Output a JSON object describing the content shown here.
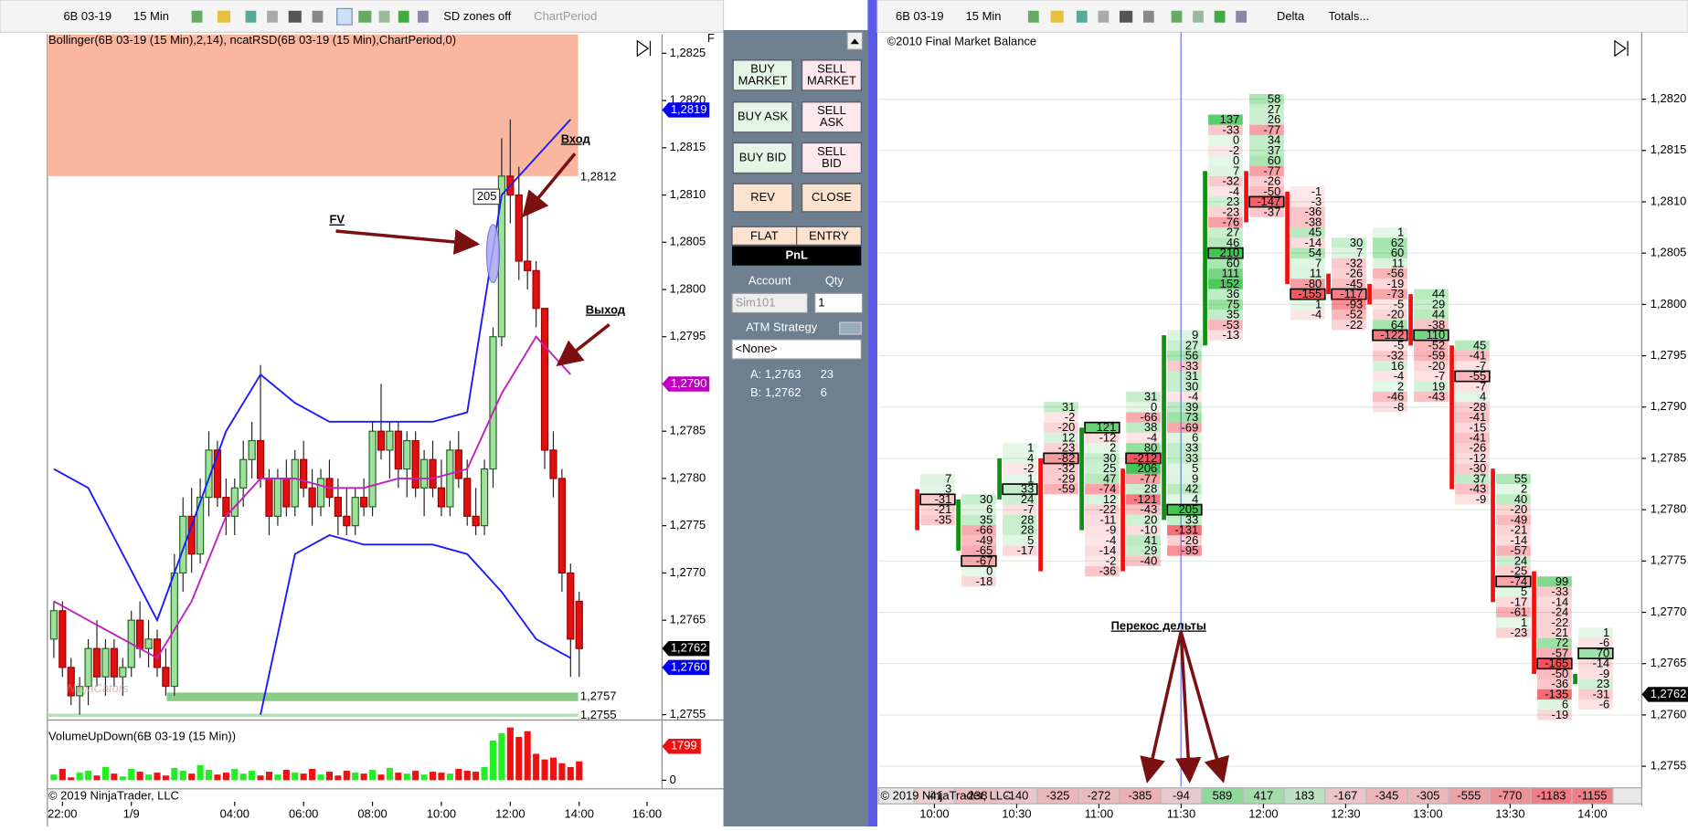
{
  "left_toolbar": {
    "instrument": "6B 03-19",
    "period": "15 Min",
    "sd_zones": "SD zones off",
    "chart_period": "ChartPeriod"
  },
  "left_chart": {
    "indicator_label": "Bollinger(6B 03-19 (15 Min),2,14),  ncatRSD(6B 03-19 (15 Min),ChartPeriod,0)",
    "ylim": [
      1.2755,
      1.2827
    ],
    "yticks": [
      {
        "value": 1.2825,
        "label": "1,2825"
      },
      {
        "value": 1.282,
        "label": "1,2820"
      },
      {
        "value": 1.2815,
        "label": "1,2815"
      },
      {
        "value": 1.281,
        "label": "1,2810"
      },
      {
        "value": 1.2805,
        "label": "1,2805"
      },
      {
        "value": 1.28,
        "label": "1,2800"
      },
      {
        "value": 1.2795,
        "label": "1,2795"
      },
      {
        "value": 1.279,
        "label": "1,2790"
      },
      {
        "value": 1.2785,
        "label": "1,2785"
      },
      {
        "value": 1.278,
        "label": "1,2780"
      },
      {
        "value": 1.2775,
        "label": "1,2775"
      },
      {
        "value": 1.277,
        "label": "1,2770"
      },
      {
        "value": 1.2765,
        "label": "1,2765"
      },
      {
        "value": 1.276,
        "label": "1,2760"
      },
      {
        "value": 1.2755,
        "label": "1,2755"
      }
    ],
    "x_labels": [
      "22:00",
      "1/9",
      "04:00",
      "06:00",
      "08:00",
      "10:00",
      "12:00",
      "14:00",
      "16:00"
    ],
    "candles": [
      [
        1.2763,
        1.2767,
        1.2761,
        1.2766
      ],
      [
        1.2766,
        1.2767,
        1.2759,
        1.276
      ],
      [
        1.276,
        1.2761,
        1.2756,
        1.2757
      ],
      [
        1.2757,
        1.2759,
        1.2755,
        1.2758
      ],
      [
        1.2758,
        1.2763,
        1.2756,
        1.2762
      ],
      [
        1.2762,
        1.2765,
        1.2758,
        1.2759
      ],
      [
        1.2759,
        1.2763,
        1.2757,
        1.2762
      ],
      [
        1.2762,
        1.2763,
        1.2758,
        1.2759
      ],
      [
        1.2759,
        1.2761,
        1.2757,
        1.276
      ],
      [
        1.276,
        1.2766,
        1.2759,
        1.2765
      ],
      [
        1.2765,
        1.2767,
        1.2761,
        1.2762
      ],
      [
        1.2762,
        1.2765,
        1.276,
        1.2763
      ],
      [
        1.2763,
        1.2764,
        1.2759,
        1.276
      ],
      [
        1.276,
        1.2762,
        1.2757,
        1.2758
      ],
      [
        1.2758,
        1.2772,
        1.2757,
        1.277
      ],
      [
        1.277,
        1.2778,
        1.2768,
        1.2776
      ],
      [
        1.2776,
        1.2779,
        1.277,
        1.2772
      ],
      [
        1.2772,
        1.278,
        1.2771,
        1.2778
      ],
      [
        1.2778,
        1.2785,
        1.2776,
        1.2783
      ],
      [
        1.2783,
        1.2784,
        1.2777,
        1.2778
      ],
      [
        1.2778,
        1.278,
        1.2774,
        1.2776
      ],
      [
        1.2776,
        1.278,
        1.2774,
        1.2779
      ],
      [
        1.2779,
        1.2784,
        1.2777,
        1.2782
      ],
      [
        1.2782,
        1.2786,
        1.278,
        1.2784
      ],
      [
        1.2784,
        1.2792,
        1.2779,
        1.278
      ],
      [
        1.278,
        1.2781,
        1.2774,
        1.2776
      ],
      [
        1.2776,
        1.2781,
        1.2775,
        1.278
      ],
      [
        1.278,
        1.2782,
        1.2776,
        1.2777
      ],
      [
        1.2777,
        1.2783,
        1.2776,
        1.2782
      ],
      [
        1.2782,
        1.2784,
        1.2778,
        1.2779
      ],
      [
        1.2779,
        1.2781,
        1.2775,
        1.2777
      ],
      [
        1.2777,
        1.2781,
        1.2776,
        1.278
      ],
      [
        1.278,
        1.2782,
        1.2777,
        1.2778
      ],
      [
        1.2778,
        1.278,
        1.2774,
        1.2776
      ],
      [
        1.2776,
        1.2779,
        1.2774,
        1.2775
      ],
      [
        1.2775,
        1.2779,
        1.2774,
        1.2778
      ],
      [
        1.2778,
        1.278,
        1.2776,
        1.2777
      ],
      [
        1.2777,
        1.2786,
        1.2776,
        1.2785
      ],
      [
        1.2785,
        1.279,
        1.2782,
        1.2783
      ],
      [
        1.2783,
        1.2786,
        1.278,
        1.2785
      ],
      [
        1.2785,
        1.2786,
        1.2779,
        1.2781
      ],
      [
        1.2781,
        1.2785,
        1.2778,
        1.2784
      ],
      [
        1.2784,
        1.2785,
        1.2778,
        1.2779
      ],
      [
        1.2779,
        1.2783,
        1.2776,
        1.2782
      ],
      [
        1.2782,
        1.2784,
        1.2778,
        1.2779
      ],
      [
        1.2779,
        1.2782,
        1.2776,
        1.2777
      ],
      [
        1.2777,
        1.2784,
        1.2776,
        1.2783
      ],
      [
        1.2783,
        1.2785,
        1.2779,
        1.278
      ],
      [
        1.278,
        1.2782,
        1.2775,
        1.2776
      ],
      [
        1.2776,
        1.2779,
        1.2774,
        1.2775
      ],
      [
        1.2775,
        1.2782,
        1.2774,
        1.2781
      ],
      [
        1.2781,
        1.2796,
        1.2779,
        1.2795
      ],
      [
        1.2795,
        1.2816,
        1.2794,
        1.2812
      ],
      [
        1.2812,
        1.2818,
        1.2807,
        1.281
      ],
      [
        1.281,
        1.2813,
        1.2801,
        1.2803
      ],
      [
        1.2803,
        1.2808,
        1.28,
        1.2802
      ],
      [
        1.2802,
        1.2803,
        1.2796,
        1.2798
      ],
      [
        1.2798,
        1.2798,
        1.2781,
        1.2783
      ],
      [
        1.2783,
        1.2785,
        1.2778,
        1.278
      ],
      [
        1.278,
        1.2781,
        1.2768,
        1.277
      ],
      [
        1.277,
        1.2771,
        1.2759,
        1.2763
      ],
      [
        1.2767,
        1.2768,
        1.2759,
        1.2762
      ]
    ],
    "bands": {
      "x": [
        0,
        4,
        8,
        12,
        16,
        20,
        24,
        28,
        32,
        36,
        40,
        44,
        48,
        52,
        56,
        60
      ],
      "series": [
        {
          "color": "#1a1aff",
          "values": [
            1.2781,
            1.2779,
            1.2772,
            1.2765,
            1.2775,
            1.2785,
            1.2791,
            1.2788,
            1.2786,
            1.2786,
            1.2786,
            1.2786,
            1.2787,
            1.281,
            1.2814,
            1.2818
          ]
        },
        {
          "color": "#c020c0",
          "values": [
            1.2767,
            1.2765,
            1.2763,
            1.2761,
            1.2767,
            1.2776,
            1.278,
            1.278,
            1.2779,
            1.2779,
            1.278,
            1.278,
            1.2781,
            1.2789,
            1.2795,
            1.2791
          ]
        },
        {
          "color": "#1a1aff",
          "values": [
            null,
            null,
            null,
            null,
            null,
            null,
            1.2755,
            1.2772,
            1.2774,
            1.2773,
            1.2773,
            1.2773,
            1.2772,
            1.2768,
            1.2763,
            1.2761
          ]
        }
      ]
    },
    "zones": [
      {
        "value": 1.2812,
        "label": "1,2812",
        "color": "#f9b7a0"
      },
      {
        "value": 1.2757,
        "label": "1,2757",
        "color": "#88cc88"
      },
      {
        "value": 1.2755,
        "label": "1,2755",
        "color": "#b5e0b5"
      }
    ],
    "flags": [
      {
        "value": 1.2819,
        "label": "1,2819",
        "color": "#0000ee"
      },
      {
        "value": 1.279,
        "label": "1,2790",
        "color": "#c000c0"
      },
      {
        "value": 1.2762,
        "label": "1,2762",
        "color": "#000000"
      },
      {
        "value": 1.276,
        "label": "1,2760",
        "color": "#0000ee"
      }
    ],
    "marker_label": "205",
    "watermark": "NinjaCators",
    "volume": {
      "label": "VolumeUpDown(6B 03-19 (15 Min))",
      "ylim": [
        0,
        2850
      ],
      "yticks": [
        0
      ],
      "flag": 1799,
      "values": [
        300,
        600,
        150,
        400,
        500,
        250,
        700,
        350,
        200,
        600,
        450,
        300,
        400,
        250,
        650,
        500,
        350,
        800,
        550,
        300,
        400,
        600,
        350,
        500,
        250,
        450,
        300,
        550,
        400,
        350,
        600,
        300,
        450,
        250,
        500,
        400,
        350,
        550,
        300,
        650,
        400,
        350,
        500,
        300,
        450,
        400,
        350,
        600,
        500,
        450,
        700,
        2100,
        2500,
        2800,
        2300,
        2600,
        1400,
        1100,
        1200,
        900,
        700,
        1000
      ]
    },
    "copyright": "© 2019 NinjaTrader, LLC"
  },
  "order_panel": {
    "buttons": [
      {
        "lines": [
          "BUY",
          "MARKET"
        ]
      },
      {
        "lines": [
          "SELL",
          "MARKET"
        ]
      },
      {
        "lines": [
          "BUY ASK"
        ]
      },
      {
        "lines": [
          "SELL",
          "ASK"
        ]
      },
      {
        "lines": [
          "BUY BID"
        ]
      },
      {
        "lines": [
          "SELL",
          "BID"
        ]
      },
      {
        "lines": [
          "REV"
        ]
      },
      {
        "lines": [
          "CLOSE"
        ]
      }
    ],
    "flat": "FLAT",
    "entry": "ENTRY",
    "pnl": "PnL",
    "account_label": "Account",
    "qty_label": "Qty",
    "account": "Sim101",
    "qty": "1",
    "atm_label": "ATM Strategy",
    "atm": "<None>",
    "ask": "A: 1,2763",
    "ask_size": "23",
    "bid": "B: 1,2762",
    "bid_size": "6"
  },
  "right_toolbar": {
    "instrument": "6B 03-19",
    "period": "15 Min",
    "mode": "Delta",
    "totals": "Totals..."
  },
  "right_chart": {
    "title": "©2010 Final Market Balance",
    "ylim": [
      1.2755,
      1.2826
    ],
    "yticks": [
      {
        "value": 1.282,
        "label": "1,2820"
      },
      {
        "value": 1.2815,
        "label": "1,2815"
      },
      {
        "value": 1.281,
        "label": "1,2810"
      },
      {
        "value": 1.2805,
        "label": "1,2805"
      },
      {
        "value": 1.28,
        "label": "1,2800"
      },
      {
        "value": 1.2795,
        "label": "1,2795"
      },
      {
        "value": 1.279,
        "label": "1,2790"
      },
      {
        "value": 1.2785,
        "label": "1,2785"
      },
      {
        "value": 1.278,
        "label": "1,2780"
      },
      {
        "value": 1.2775,
        "label": "1,2775"
      },
      {
        "value": 1.277,
        "label": "1,2770"
      },
      {
        "value": 1.2765,
        "label": "1,2765"
      },
      {
        "value": 1.276,
        "label": "1,2760"
      },
      {
        "value": 1.2755,
        "label": "1,2755"
      }
    ],
    "flag": {
      "value": 1.2762,
      "label": "1,2762"
    },
    "columns": [
      {
        "top": 1.2783,
        "body": [
          1.2782,
          1.2778
        ],
        "poc": 2,
        "cells": [
          7,
          3,
          -31,
          -21,
          -35
        ]
      },
      {
        "top": 1.2781,
        "body": [
          1.2776,
          1.2781
        ],
        "poc": 6,
        "cells": [
          30,
          6,
          35,
          -66,
          -49,
          -65,
          -67,
          0,
          -18
        ]
      },
      {
        "top": 1.2786,
        "body": [
          1.2781,
          1.2785
        ],
        "poc": 4,
        "cells": [
          1,
          4,
          -2,
          1,
          33,
          24,
          -7,
          28,
          28,
          5,
          -17
        ]
      },
      {
        "top": 1.279,
        "body": [
          1.2785,
          1.2774
        ],
        "poc": 5,
        "cells": [
          31,
          -2,
          -20,
          12,
          -23,
          -82,
          -32,
          -29,
          -59
        ]
      },
      {
        "top": 1.2788,
        "body": [
          1.2778,
          1.2788
        ],
        "poc": 0,
        "cells": [
          121,
          -12,
          2,
          30,
          25,
          47,
          -74,
          12,
          -22,
          -11,
          -9,
          -4,
          -14,
          -2,
          -36
        ]
      },
      {
        "top": 1.2791,
        "body": [
          1.2784,
          1.2774
        ],
        "poc": 6,
        "cells": [
          31,
          0,
          -66,
          38,
          -4,
          80,
          -212,
          206,
          -77,
          28,
          -121,
          -43,
          20,
          -10,
          41,
          29,
          -40
        ]
      },
      {
        "top": 1.2797,
        "body": [
          1.2779,
          1.2797
        ],
        "poc": 17,
        "cells": [
          9,
          27,
          56,
          -33,
          31,
          30,
          -4,
          39,
          73,
          -69,
          6,
          33,
          33,
          5,
          9,
          42,
          4,
          205,
          33,
          -131,
          -26,
          -95
        ]
      },
      {
        "top": 1.2818,
        "body": [
          1.2796,
          1.2813
        ],
        "poc": 13,
        "cells": [
          137,
          -33,
          0,
          -2,
          0,
          7,
          -32,
          -4,
          23,
          -23,
          -76,
          27,
          46,
          210,
          60,
          111,
          152,
          36,
          75,
          35,
          -53,
          -13
        ]
      },
      {
        "top": 1.282,
        "body": [
          1.2813,
          1.2808
        ],
        "poc": 10,
        "cells": [
          58,
          27,
          26,
          -77,
          34,
          37,
          60,
          -77,
          -26,
          -50,
          -147,
          -37
        ]
      },
      {
        "top": 1.2811,
        "body": [
          1.2811,
          1.2802
        ],
        "poc": 10,
        "cells": [
          -1,
          -3,
          -36,
          -38,
          45,
          -14,
          54,
          7,
          11,
          -80,
          -155,
          1,
          -4
        ]
      },
      {
        "top": 1.2806,
        "body": [
          1.2803,
          1.2801
        ],
        "poc": 5,
        "cells": [
          30,
          7,
          -32,
          -26,
          -45,
          -117,
          -93,
          -52,
          -22
        ]
      },
      {
        "top": 1.2807,
        "body": [
          1.2802,
          1.28
        ],
        "poc": 10,
        "cells": [
          1,
          62,
          60,
          11,
          -56,
          -19,
          -73,
          -5,
          -20,
          64,
          -122,
          -5,
          -32,
          16,
          -4,
          2,
          -46,
          -8
        ]
      },
      {
        "top": 1.2801,
        "body": [
          1.2801,
          1.2796
        ],
        "poc": 4,
        "cells": [
          44,
          29,
          44,
          -38,
          110,
          -52,
          -59,
          -20,
          -7,
          19,
          -43
        ]
      },
      {
        "top": 1.2796,
        "body": [
          1.2796,
          1.2782
        ],
        "poc": 3,
        "cells": [
          45,
          -41,
          -7,
          -55,
          -7,
          4,
          -28,
          -41,
          -15,
          -41,
          -26,
          -12,
          -30,
          37,
          -43,
          -9
        ]
      },
      {
        "top": 1.2783,
        "body": [
          1.2784,
          1.2771
        ],
        "poc": 10,
        "cells": [
          55,
          2,
          40,
          -20,
          -49,
          -21,
          -14,
          -57,
          24,
          -25,
          -74,
          5,
          -17,
          -61,
          1,
          -23
        ]
      },
      {
        "top": 1.2773,
        "body": [
          1.2774,
          1.2764
        ],
        "poc": 8,
        "cells": [
          99,
          -33,
          -14,
          -24,
          -22,
          -21,
          72,
          -57,
          -165,
          -50,
          -36,
          -135,
          6,
          -19
        ]
      },
      {
        "top": 1.2768,
        "body": [
          1.2763,
          1.2764
        ],
        "poc": 2,
        "cells": [
          1,
          -6,
          70,
          -14,
          -9,
          23,
          -31,
          -6
        ]
      }
    ],
    "delta": [
      -41,
      -238,
      -140,
      -325,
      -272,
      -385,
      -94,
      589,
      417,
      183,
      -167,
      -345,
      -305,
      -555,
      -770,
      -1183,
      -1155
    ],
    "time_labels": [
      "10:00",
      "10:30",
      "11:00",
      "11:30",
      "12:00",
      "12:30",
      "13:00",
      "13:30",
      "14:00"
    ],
    "copyright": "© 2019 NinjaTrader, LLC"
  },
  "annotations": {
    "entry": "Вход",
    "exit": "Выход",
    "fv": "FV",
    "delta_skew": "Перекос дельты"
  }
}
